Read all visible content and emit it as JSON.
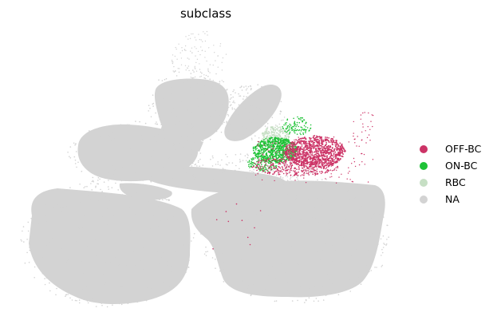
{
  "chart_data": {
    "type": "scatter",
    "title": "subclass",
    "xlabel": "",
    "ylabel": "",
    "axes_visible": false,
    "grid": false,
    "legend_placement": "right",
    "series": [
      {
        "name": "OFF-BC",
        "color": "#cc3366"
      },
      {
        "name": "ON-BC",
        "color": "#1ec236"
      },
      {
        "name": "RBC",
        "color": "#c6dfc4"
      },
      {
        "name": "NA",
        "color": "#d3d3d3"
      }
    ]
  }
}
